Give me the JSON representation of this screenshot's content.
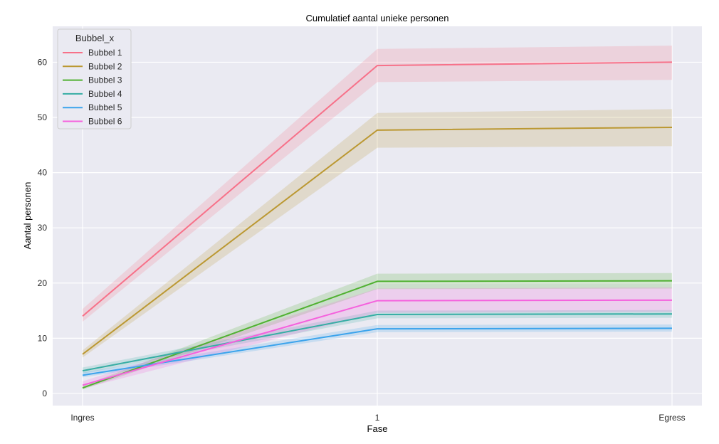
{
  "chart_data": {
    "type": "line",
    "title": "Cumulatief aantal unieke personen",
    "xlabel": "Fase",
    "ylabel": "Aantal personen",
    "categories": [
      "Ingres",
      "1",
      "Egress"
    ],
    "ylim": [
      -2.2,
      66.5
    ],
    "yticks": [
      0,
      10,
      20,
      30,
      40,
      50,
      60
    ],
    "grid": true,
    "legend": {
      "title": "Bubbel_x",
      "placement": "top-left"
    },
    "series": [
      {
        "name": "Bubbel 1",
        "color": "#f77189",
        "values": [
          14.0,
          59.4,
          60.0
        ],
        "ci_low": [
          13.0,
          56.4,
          56.8
        ],
        "ci_high": [
          15.3,
          62.4,
          63.0
        ]
      },
      {
        "name": "Bubbel 2",
        "color": "#bb9832",
        "values": [
          7.1,
          47.7,
          48.2
        ],
        "ci_low": [
          6.5,
          44.5,
          44.8
        ],
        "ci_high": [
          7.8,
          50.8,
          51.5
        ]
      },
      {
        "name": "Bubbel 3",
        "color": "#50b131",
        "values": [
          1.0,
          20.3,
          20.4
        ],
        "ci_low": [
          0.7,
          18.9,
          19.0
        ],
        "ci_high": [
          1.4,
          21.7,
          21.8
        ]
      },
      {
        "name": "Bubbel 4",
        "color": "#36ada4",
        "values": [
          4.1,
          14.3,
          14.4
        ],
        "ci_low": [
          3.6,
          13.6,
          13.7
        ],
        "ci_high": [
          4.7,
          15.0,
          15.1
        ]
      },
      {
        "name": "Bubbel 5",
        "color": "#3ba3ec",
        "values": [
          3.3,
          11.7,
          11.8
        ],
        "ci_low": [
          2.9,
          11.1,
          11.2
        ],
        "ci_high": [
          3.8,
          12.4,
          12.5
        ]
      },
      {
        "name": "Bubbel 6",
        "color": "#f561dd",
        "values": [
          1.5,
          16.8,
          16.9
        ],
        "ci_low": [
          0.9,
          14.6,
          14.8
        ],
        "ci_high": [
          2.2,
          19.0,
          19.2
        ]
      }
    ]
  }
}
